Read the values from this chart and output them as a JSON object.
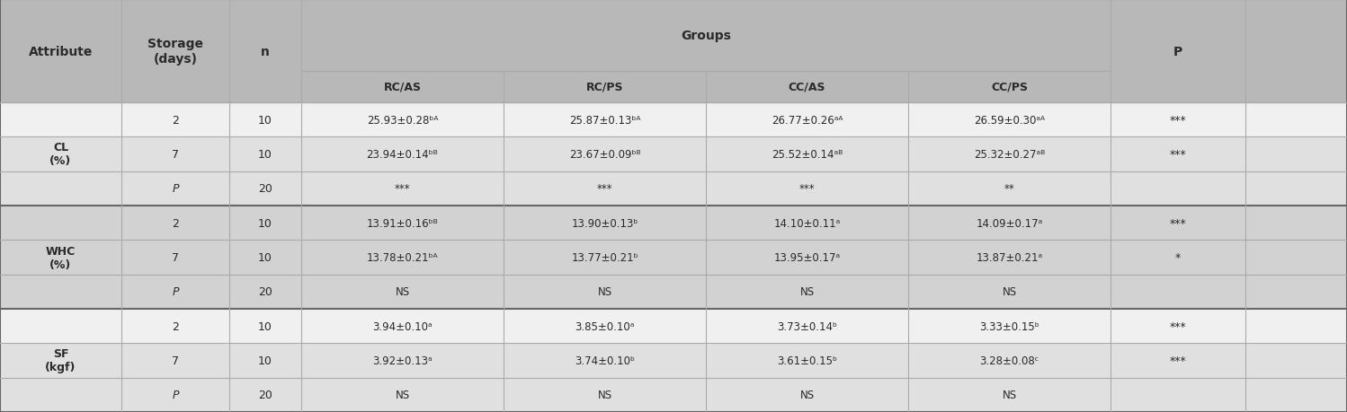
{
  "bg_color": "#cbcbcb",
  "header_bg": "#b8b8b8",
  "row_colors": {
    "CL_0": "#f2f2f2",
    "CL_1": "#dcdcdc",
    "CL_2": "#dcdcdc",
    "WHC_0": "#c8c8c8",
    "WHC_1": "#c8c8c8",
    "WHC_2": "#c8c8c8",
    "SF_0": "#f2f2f2",
    "SF_1": "#dcdcdc",
    "SF_2": "#dcdcdc"
  },
  "groups_label": "Groups",
  "col_headers_top": [
    "Attribute",
    "Storage\n(days)",
    "n",
    "Groups",
    "",
    "",
    "",
    "P"
  ],
  "col_headers_sub": [
    "",
    "",
    "",
    "RC/AS",
    "RC/PS",
    "CC/AS",
    "CC/PS",
    ""
  ],
  "rows": [
    {
      "attr": "CL\n(%)",
      "storage": "2",
      "n": "10",
      "rc_as": "25.93±0.28ᵇᴬ",
      "rc_ps": "25.87±0.13ᵇᴬ",
      "cc_as": "26.77±0.26ᵃᴬ",
      "cc_ps": "26.59±0.30ᵃᴬ",
      "p": "***",
      "group": 0,
      "subrow": 0,
      "p_italic": false
    },
    {
      "attr": "",
      "storage": "7",
      "n": "10",
      "rc_as": "23.94±0.14ᵇᴮ",
      "rc_ps": "23.67±0.09ᵇᴮ",
      "cc_as": "25.52±0.14ᵃᴮ",
      "cc_ps": "25.32±0.27ᵃᴮ",
      "p": "***",
      "group": 0,
      "subrow": 1,
      "p_italic": false
    },
    {
      "attr": "",
      "storage": "P",
      "n": "20",
      "rc_as": "***",
      "rc_ps": "***",
      "cc_as": "***",
      "cc_ps": "**",
      "p": "",
      "group": 0,
      "subrow": 2,
      "p_italic": true
    },
    {
      "attr": "WHC\n(%)",
      "storage": "2",
      "n": "10",
      "rc_as": "13.91±0.16ᵇᴮ",
      "rc_ps": "13.90±0.13ᵇ",
      "cc_as": "14.10±0.11ᵃ",
      "cc_ps": "14.09±0.17ᵃ",
      "p": "***",
      "group": 1,
      "subrow": 0,
      "p_italic": false
    },
    {
      "attr": "",
      "storage": "7",
      "n": "10",
      "rc_as": "13.78±0.21ᵇᴬ",
      "rc_ps": "13.77±0.21ᵇ",
      "cc_as": "13.95±0.17ᵃ",
      "cc_ps": "13.87±0.21ᵃ",
      "p": "*",
      "group": 1,
      "subrow": 1,
      "p_italic": false
    },
    {
      "attr": "",
      "storage": "P",
      "n": "20",
      "rc_as": "NS",
      "rc_ps": "NS",
      "cc_as": "NS",
      "cc_ps": "NS",
      "p": "",
      "group": 1,
      "subrow": 2,
      "p_italic": true
    },
    {
      "attr": "SF\n(kgf)",
      "storage": "2",
      "n": "10",
      "rc_as": "3.94±0.10ᵃ",
      "rc_ps": "3.85±0.10ᵃ",
      "cc_as": "3.73±0.14ᵇ",
      "cc_ps": "3.33±0.15ᵇ",
      "p": "***",
      "group": 2,
      "subrow": 0,
      "p_italic": false
    },
    {
      "attr": "",
      "storage": "7",
      "n": "10",
      "rc_as": "3.92±0.13ᵃ",
      "rc_ps": "3.74±0.10ᵇ",
      "cc_as": "3.61±0.15ᵇ",
      "cc_ps": "3.28±0.08ᶜ",
      "p": "***",
      "group": 2,
      "subrow": 1,
      "p_italic": false
    },
    {
      "attr": "",
      "storage": "P",
      "n": "20",
      "rc_as": "NS",
      "rc_ps": "NS",
      "cc_as": "NS",
      "cc_ps": "NS",
      "p": "",
      "group": 2,
      "subrow": 2,
      "p_italic": true
    }
  ],
  "line_color_light": "#aaaaaa",
  "line_color_heavy": "#666666",
  "text_color": "#2a2a2a"
}
